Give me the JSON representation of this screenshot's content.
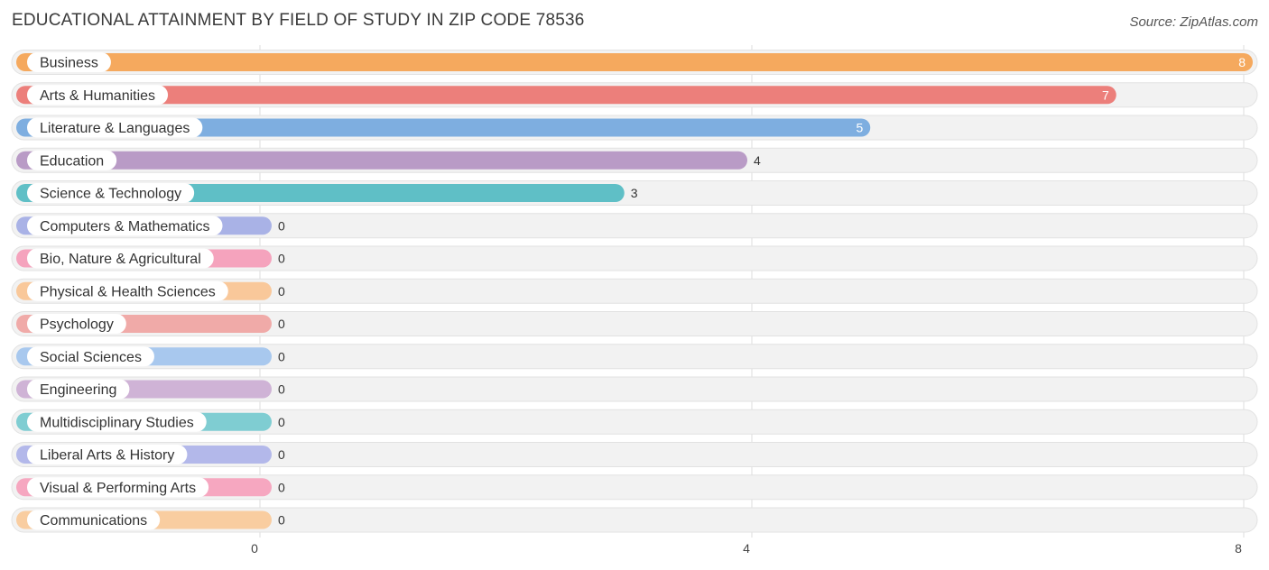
{
  "title": "EDUCATIONAL ATTAINMENT BY FIELD OF STUDY IN ZIP CODE 78536",
  "source": "Source: ZipAtlas.com",
  "chart_data": {
    "type": "bar",
    "orientation": "horizontal",
    "title": "EDUCATIONAL ATTAINMENT BY FIELD OF STUDY IN ZIP CODE 78536",
    "categories": [
      "Business",
      "Arts & Humanities",
      "Literature & Languages",
      "Education",
      "Science & Technology",
      "Computers & Mathematics",
      "Bio, Nature & Agricultural",
      "Physical & Health Sciences",
      "Psychology",
      "Social Sciences",
      "Engineering",
      "Multidisciplinary Studies",
      "Liberal Arts & History",
      "Visual & Performing Arts",
      "Communications"
    ],
    "values": [
      8,
      7,
      5,
      4,
      3,
      0,
      0,
      0,
      0,
      0,
      0,
      0,
      0,
      0,
      0
    ],
    "colors": [
      "#f5a95e",
      "#ec7f7b",
      "#7eaee0",
      "#b99bc6",
      "#5fbfc6",
      "#a9b2e6",
      "#f5a3bd",
      "#f9c89a",
      "#f0aaa8",
      "#a8c8ee",
      "#cfb3d6",
      "#7fcdd2",
      "#b3b8ea",
      "#f6a7c0",
      "#f9cda0"
    ],
    "xlim": [
      0,
      8
    ],
    "x_ticks": [
      0,
      4,
      8
    ],
    "grid": true
  }
}
